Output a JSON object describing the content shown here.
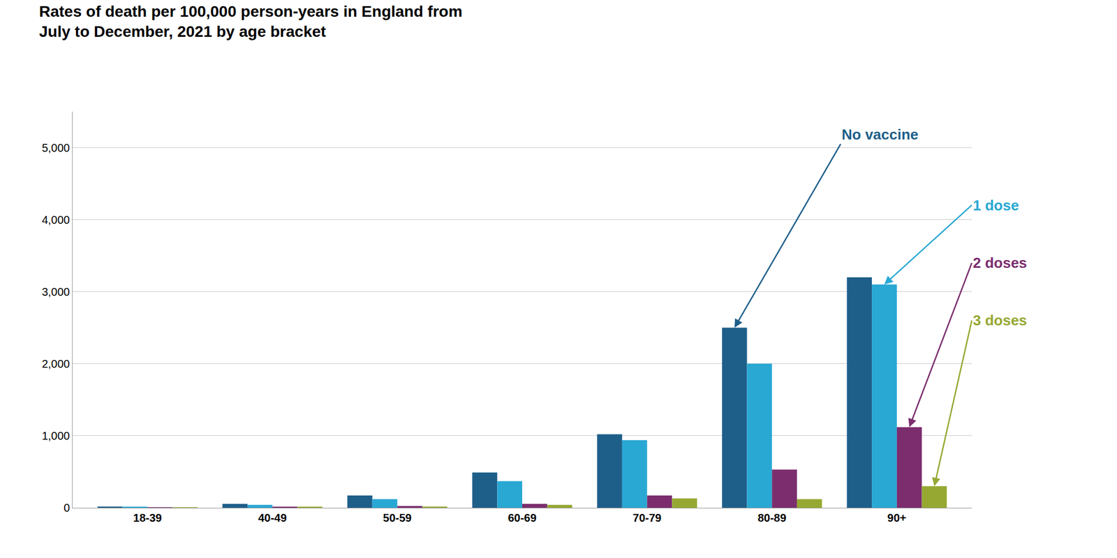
{
  "chart_data": {
    "type": "bar",
    "title": "Rates of death per 100,000 person-years in England from\nJuly to December, 2021 by age bracket",
    "categories": [
      "18-39",
      "40-49",
      "50-59",
      "60-69",
      "70-79",
      "80-89",
      "90+"
    ],
    "series": [
      {
        "name": "No vaccine",
        "color": "#1e5f8a",
        "values": [
          18,
          55,
          170,
          490,
          1020,
          2500,
          3200
        ]
      },
      {
        "name": "1 dose",
        "color": "#29a8d4",
        "values": [
          10,
          40,
          120,
          370,
          940,
          2000,
          3100
        ]
      },
      {
        "name": "2 doses",
        "color": "#7b2d6e",
        "values": [
          5,
          12,
          25,
          55,
          170,
          530,
          1120
        ]
      },
      {
        "name": "3 doses",
        "color": "#96a832",
        "values": [
          3,
          8,
          18,
          40,
          130,
          120,
          300
        ]
      }
    ],
    "annotations": [
      {
        "text": "No vaccine",
        "x": "80-89"
      },
      {
        "text": "1 dose",
        "x": "90+"
      },
      {
        "text": "2 doses",
        "x": "90+"
      },
      {
        "text": "3 doses",
        "x": "90+"
      }
    ],
    "ylim": [
      0,
      5500
    ],
    "yticks": [
      0,
      {
        "value": 1000,
        "label": "1,000"
      },
      {
        "value": 2000,
        "label": "2,000"
      },
      {
        "value": 3000,
        "label": "3,000"
      },
      {
        "value": 4000,
        "label": "4,000"
      },
      {
        "value": 5000,
        "label": "5,000"
      }
    ],
    "grid": true
  }
}
